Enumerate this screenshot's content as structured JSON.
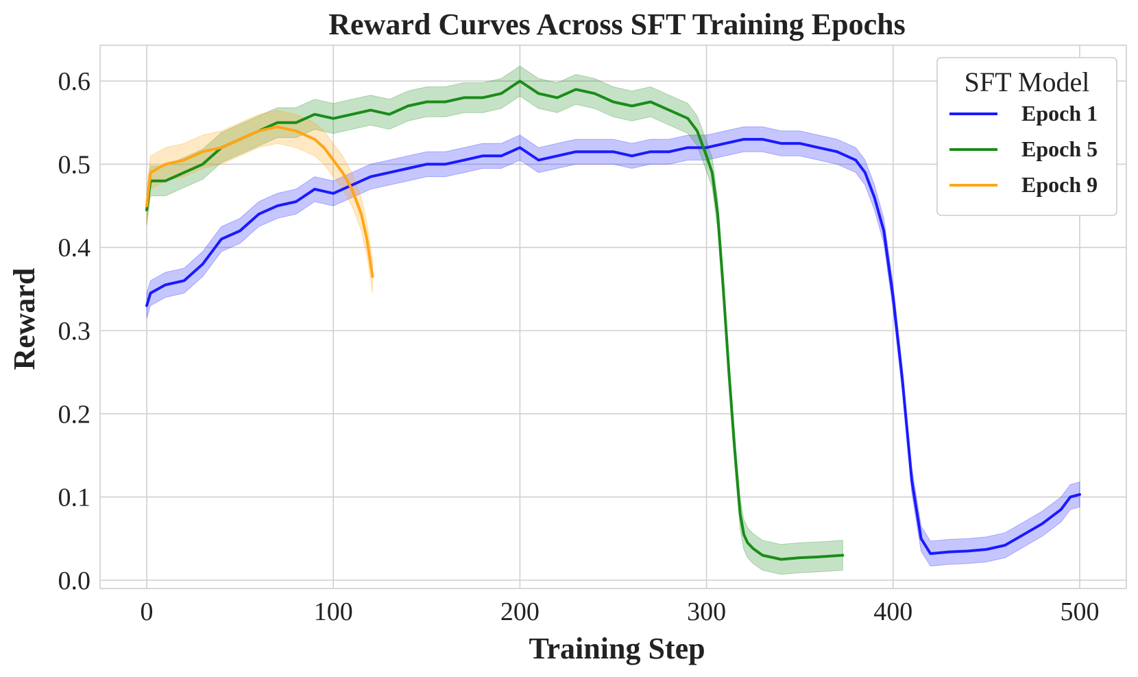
{
  "chart_data": {
    "type": "line",
    "title": "Reward Curves Across SFT Training Epochs",
    "xlabel": "Training Step",
    "ylabel": "Reward",
    "xlim": [
      -25,
      525
    ],
    "ylim": [
      -0.01,
      0.643
    ],
    "xticks": [
      0,
      100,
      200,
      300,
      400,
      500
    ],
    "yticks": [
      0.0,
      0.1,
      0.2,
      0.3,
      0.4,
      0.5,
      0.6
    ],
    "xtick_labels": [
      "0",
      "100",
      "200",
      "300",
      "400",
      "500"
    ],
    "ytick_labels": [
      "0.0",
      "0.1",
      "0.2",
      "0.3",
      "0.4",
      "0.5",
      "0.6"
    ],
    "grid": true,
    "legend": {
      "title": "SFT Model",
      "position": "top-right"
    },
    "series": [
      {
        "name": "Epoch 1",
        "color": "#1a1aff",
        "x": [
          0,
          2,
          10,
          20,
          30,
          40,
          50,
          60,
          70,
          80,
          90,
          100,
          110,
          120,
          130,
          140,
          150,
          160,
          170,
          180,
          190,
          200,
          210,
          220,
          230,
          240,
          250,
          260,
          270,
          280,
          290,
          300,
          310,
          320,
          330,
          340,
          350,
          360,
          370,
          380,
          385,
          390,
          395,
          400,
          405,
          410,
          415,
          420,
          430,
          440,
          450,
          460,
          470,
          480,
          490,
          495,
          500
        ],
        "values": [
          0.33,
          0.345,
          0.355,
          0.36,
          0.38,
          0.41,
          0.42,
          0.44,
          0.45,
          0.455,
          0.47,
          0.465,
          0.475,
          0.485,
          0.49,
          0.495,
          0.5,
          0.5,
          0.505,
          0.51,
          0.51,
          0.52,
          0.505,
          0.51,
          0.515,
          0.515,
          0.515,
          0.51,
          0.515,
          0.515,
          0.52,
          0.52,
          0.525,
          0.53,
          0.53,
          0.525,
          0.525,
          0.52,
          0.515,
          0.505,
          0.49,
          0.46,
          0.42,
          0.34,
          0.24,
          0.12,
          0.05,
          0.032,
          0.034,
          0.035,
          0.037,
          0.042,
          0.055,
          0.068,
          0.085,
          0.1,
          0.103
        ],
        "band": 0.015
      },
      {
        "name": "Epoch 5",
        "color": "#1a8c1a",
        "x": [
          0,
          2,
          10,
          20,
          30,
          40,
          50,
          60,
          70,
          80,
          90,
          100,
          110,
          120,
          130,
          140,
          150,
          160,
          170,
          180,
          190,
          200,
          210,
          220,
          230,
          240,
          250,
          260,
          270,
          280,
          290,
          295,
          300,
          303,
          306,
          309,
          312,
          315,
          318,
          320,
          322,
          325,
          330,
          340,
          350,
          360,
          373
        ],
        "values": [
          0.445,
          0.48,
          0.48,
          0.49,
          0.5,
          0.52,
          0.53,
          0.54,
          0.55,
          0.55,
          0.56,
          0.555,
          0.56,
          0.565,
          0.56,
          0.57,
          0.575,
          0.575,
          0.58,
          0.58,
          0.585,
          0.6,
          0.585,
          0.58,
          0.59,
          0.585,
          0.575,
          0.57,
          0.575,
          0.565,
          0.555,
          0.54,
          0.51,
          0.49,
          0.44,
          0.35,
          0.25,
          0.16,
          0.08,
          0.055,
          0.045,
          0.038,
          0.03,
          0.025,
          0.027,
          0.028,
          0.03
        ],
        "band": 0.018
      },
      {
        "name": "Epoch 9",
        "color": "#ffa515",
        "x": [
          0,
          2,
          10,
          20,
          30,
          40,
          50,
          60,
          70,
          80,
          90,
          95,
          100,
          105,
          110,
          115,
          118,
          121
        ],
        "values": [
          0.45,
          0.49,
          0.5,
          0.505,
          0.515,
          0.52,
          0.53,
          0.54,
          0.545,
          0.54,
          0.53,
          0.52,
          0.505,
          0.49,
          0.47,
          0.44,
          0.41,
          0.365
        ],
        "band": 0.02
      }
    ]
  }
}
